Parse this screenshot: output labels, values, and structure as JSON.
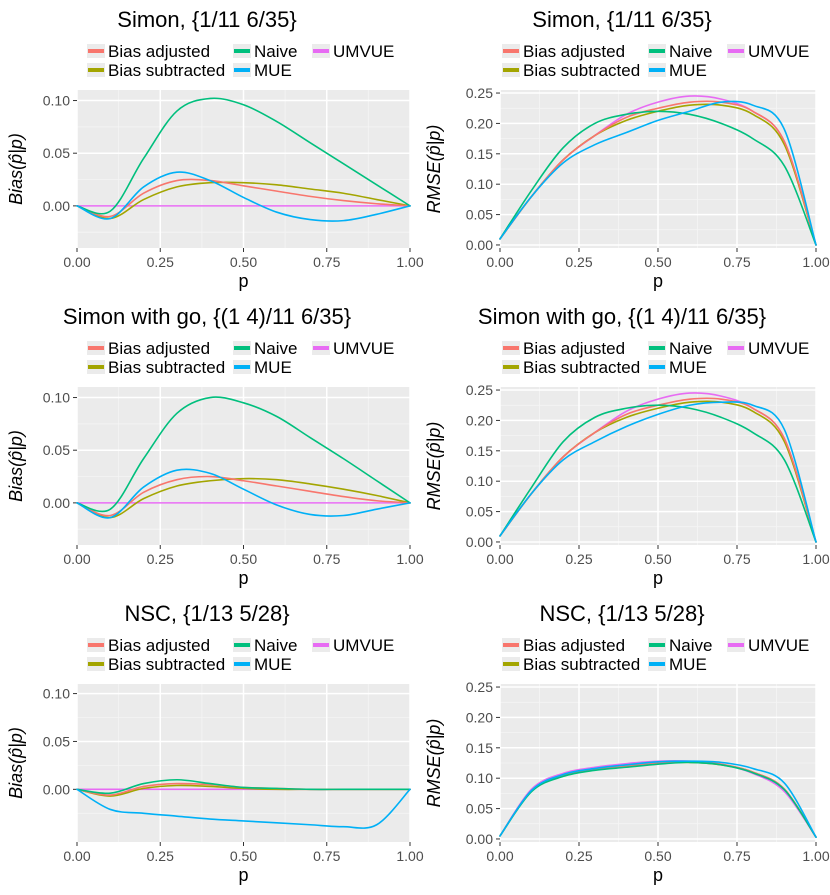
{
  "legend": {
    "entries": [
      {
        "label": "Bias adjusted",
        "color": "#F8766D"
      },
      {
        "label": "Naive",
        "color": "#00BF7D"
      },
      {
        "label": "UMVUE",
        "color": "#E76BF3"
      },
      {
        "label": "Bias subtracted",
        "color": "#A3A500"
      },
      {
        "label": "MUE",
        "color": "#00B0F6"
      }
    ]
  },
  "chart_data": [
    {
      "type": "line",
      "title": "Simon,  {1/11 6/35}",
      "xlabel": "p",
      "ylabel": "Bias(p̂|p)",
      "xlim": [
        0,
        1
      ],
      "ylim": [
        -0.04,
        0.11
      ],
      "x_ticks": [
        "0.00",
        "0.25",
        "0.50",
        "0.75",
        "1.00"
      ],
      "y_ticks": [
        "0.00",
        "0.05",
        "0.10"
      ],
      "y_tick_values": [
        0,
        0.05,
        0.1
      ],
      "x": [
        0,
        0.1,
        0.2,
        0.3,
        0.4,
        0.5,
        0.6,
        0.7,
        0.8,
        0.9,
        1.0
      ],
      "series": [
        {
          "name": "Bias adjusted",
          "values": [
            0,
            -0.01,
            0.012,
            0.024,
            0.024,
            0.019,
            0.014,
            0.009,
            0.005,
            0.002,
            0
          ]
        },
        {
          "name": "Naive",
          "values": [
            0,
            -0.005,
            0.045,
            0.09,
            0.102,
            0.096,
            0.08,
            0.06,
            0.04,
            0.02,
            0
          ]
        },
        {
          "name": "UMVUE",
          "values": [
            0,
            0,
            0,
            0,
            0,
            0,
            0,
            0,
            0,
            0,
            0
          ]
        },
        {
          "name": "Bias subtracted",
          "values": [
            0,
            -0.012,
            0.006,
            0.018,
            0.022,
            0.022,
            0.02,
            0.016,
            0.012,
            0.006,
            0
          ]
        },
        {
          "name": "MUE",
          "values": [
            0,
            -0.012,
            0.018,
            0.032,
            0.024,
            0.008,
            -0.006,
            -0.013,
            -0.014,
            -0.008,
            0
          ]
        }
      ]
    },
    {
      "type": "line",
      "title": "Simon,  {1/11 6/35}",
      "xlabel": "p",
      "ylabel": "RMSE(p̂|p)",
      "xlim": [
        0,
        1
      ],
      "ylim": [
        -0.005,
        0.255
      ],
      "x_ticks": [
        "0.00",
        "0.25",
        "0.50",
        "0.75",
        "1.00"
      ],
      "y_ticks": [
        "0.00",
        "0.05",
        "0.10",
        "0.15",
        "0.20",
        "0.25"
      ],
      "y_tick_values": [
        0,
        0.05,
        0.1,
        0.15,
        0.2,
        0.25
      ],
      "x": [
        0,
        0.1,
        0.2,
        0.3,
        0.4,
        0.5,
        0.6,
        0.7,
        0.8,
        0.9,
        1.0
      ],
      "series": [
        {
          "name": "Bias adjusted",
          "values": [
            0.01,
            0.08,
            0.14,
            0.18,
            0.21,
            0.225,
            0.235,
            0.235,
            0.22,
            0.17,
            0
          ]
        },
        {
          "name": "Naive",
          "values": [
            0.01,
            0.09,
            0.16,
            0.2,
            0.215,
            0.22,
            0.215,
            0.2,
            0.175,
            0.13,
            0
          ]
        },
        {
          "name": "UMVUE",
          "values": [
            0.01,
            0.08,
            0.14,
            0.18,
            0.215,
            0.235,
            0.245,
            0.24,
            0.22,
            0.17,
            0
          ]
        },
        {
          "name": "Bias subtracted",
          "values": [
            0.01,
            0.08,
            0.14,
            0.18,
            0.205,
            0.22,
            0.23,
            0.23,
            0.215,
            0.165,
            0
          ]
        },
        {
          "name": "MUE",
          "values": [
            0.01,
            0.08,
            0.135,
            0.165,
            0.185,
            0.205,
            0.22,
            0.235,
            0.23,
            0.19,
            0
          ]
        }
      ]
    },
    {
      "type": "line",
      "title": "Simon with go,  {(1 4)/11 6/35}",
      "xlabel": "p",
      "ylabel": "Bias(p̂|p)",
      "xlim": [
        0,
        1
      ],
      "ylim": [
        -0.04,
        0.11
      ],
      "x_ticks": [
        "0.00",
        "0.25",
        "0.50",
        "0.75",
        "1.00"
      ],
      "y_ticks": [
        "0.00",
        "0.05",
        "0.10"
      ],
      "y_tick_values": [
        0,
        0.05,
        0.1
      ],
      "x": [
        0,
        0.1,
        0.2,
        0.3,
        0.4,
        0.5,
        0.6,
        0.7,
        0.8,
        0.9,
        1.0
      ],
      "series": [
        {
          "name": "Bias adjusted",
          "values": [
            0,
            -0.012,
            0.01,
            0.022,
            0.025,
            0.021,
            0.016,
            0.011,
            0.006,
            0.002,
            0
          ]
        },
        {
          "name": "Naive",
          "values": [
            0,
            -0.006,
            0.042,
            0.085,
            0.1,
            0.095,
            0.082,
            0.062,
            0.042,
            0.021,
            0
          ]
        },
        {
          "name": "UMVUE",
          "values": [
            0,
            0,
            0,
            0,
            0,
            0,
            0,
            0,
            0,
            0,
            0
          ]
        },
        {
          "name": "Bias subtracted",
          "values": [
            0,
            -0.014,
            0.004,
            0.016,
            0.021,
            0.023,
            0.022,
            0.018,
            0.013,
            0.007,
            0
          ]
        },
        {
          "name": "MUE",
          "values": [
            0,
            -0.014,
            0.015,
            0.031,
            0.028,
            0.013,
            -0.002,
            -0.011,
            -0.012,
            -0.006,
            0
          ]
        }
      ]
    },
    {
      "type": "line",
      "title": "Simon with go,  {(1 4)/11 6/35}",
      "xlabel": "p",
      "ylabel": "RMSE(p̂|p)",
      "xlim": [
        0,
        1
      ],
      "ylim": [
        -0.005,
        0.255
      ],
      "x_ticks": [
        "0.00",
        "0.25",
        "0.50",
        "0.75",
        "1.00"
      ],
      "y_ticks": [
        "0.00",
        "0.05",
        "0.10",
        "0.15",
        "0.20",
        "0.25"
      ],
      "y_tick_values": [
        0,
        0.05,
        0.1,
        0.15,
        0.2,
        0.25
      ],
      "x": [
        0,
        0.1,
        0.2,
        0.3,
        0.4,
        0.5,
        0.6,
        0.7,
        0.8,
        0.9,
        1.0
      ],
      "series": [
        {
          "name": "Bias adjusted",
          "values": [
            0.01,
            0.08,
            0.14,
            0.18,
            0.21,
            0.225,
            0.235,
            0.235,
            0.22,
            0.17,
            0
          ]
        },
        {
          "name": "Naive",
          "values": [
            0.01,
            0.09,
            0.165,
            0.205,
            0.22,
            0.225,
            0.22,
            0.205,
            0.18,
            0.135,
            0
          ]
        },
        {
          "name": "UMVUE",
          "values": [
            0.01,
            0.08,
            0.14,
            0.18,
            0.215,
            0.235,
            0.245,
            0.24,
            0.22,
            0.17,
            0
          ]
        },
        {
          "name": "Bias subtracted",
          "values": [
            0.01,
            0.08,
            0.14,
            0.18,
            0.205,
            0.22,
            0.23,
            0.23,
            0.215,
            0.165,
            0
          ]
        },
        {
          "name": "MUE",
          "values": [
            0.01,
            0.08,
            0.135,
            0.165,
            0.19,
            0.21,
            0.225,
            0.23,
            0.225,
            0.185,
            0
          ]
        }
      ]
    },
    {
      "type": "line",
      "title": "NSC,  {1/13 5/28}",
      "xlabel": "p",
      "ylabel": "Bias(p̂|p)",
      "xlim": [
        0,
        1
      ],
      "ylim": [
        -0.055,
        0.11
      ],
      "x_ticks": [
        "0.00",
        "0.25",
        "0.50",
        "0.75",
        "1.00"
      ],
      "y_ticks": [
        "0.00",
        "0.05",
        "0.10"
      ],
      "y_tick_values": [
        0,
        0.05,
        0.1
      ],
      "x": [
        0,
        0.1,
        0.2,
        0.3,
        0.4,
        0.5,
        0.6,
        0.7,
        0.8,
        0.9,
        1.0
      ],
      "series": [
        {
          "name": "Bias adjusted",
          "values": [
            0,
            -0.006,
            0.003,
            0.006,
            0.005,
            0.002,
            0.001,
            0,
            0,
            0,
            0
          ]
        },
        {
          "name": "Naive",
          "values": [
            0,
            -0.004,
            0.006,
            0.01,
            0.006,
            0.002,
            0.001,
            0,
            0,
            0,
            0
          ]
        },
        {
          "name": "UMVUE",
          "values": [
            0,
            0,
            0,
            0,
            0,
            0,
            0,
            0,
            0,
            0,
            0
          ]
        },
        {
          "name": "Bias subtracted",
          "values": [
            0,
            -0.007,
            0.001,
            0.004,
            0.003,
            0.001,
            0,
            0,
            0,
            0,
            0
          ]
        },
        {
          "name": "MUE",
          "values": [
            0,
            -0.021,
            -0.025,
            -0.028,
            -0.031,
            -0.033,
            -0.035,
            -0.037,
            -0.039,
            -0.037,
            0
          ]
        }
      ]
    },
    {
      "type": "line",
      "title": "NSC,  {1/13 5/28}",
      "xlabel": "p",
      "ylabel": "RMSE(p̂|p)",
      "xlim": [
        0,
        1
      ],
      "ylim": [
        -0.005,
        0.255
      ],
      "x_ticks": [
        "0.00",
        "0.25",
        "0.50",
        "0.75",
        "1.00"
      ],
      "y_ticks": [
        "0.00",
        "0.05",
        "0.10",
        "0.15",
        "0.20",
        "0.25"
      ],
      "y_tick_values": [
        0,
        0.05,
        0.1,
        0.15,
        0.2,
        0.25
      ],
      "x": [
        0,
        0.1,
        0.2,
        0.3,
        0.4,
        0.5,
        0.6,
        0.7,
        0.8,
        0.9,
        1.0
      ],
      "series": [
        {
          "name": "Bias adjusted",
          "values": [
            0.005,
            0.08,
            0.105,
            0.115,
            0.12,
            0.125,
            0.127,
            0.123,
            0.11,
            0.082,
            0.003
          ]
        },
        {
          "name": "Naive",
          "values": [
            0.005,
            0.078,
            0.103,
            0.113,
            0.118,
            0.123,
            0.126,
            0.122,
            0.109,
            0.081,
            0.003
          ]
        },
        {
          "name": "UMVUE",
          "values": [
            0.005,
            0.082,
            0.108,
            0.118,
            0.124,
            0.128,
            0.128,
            0.123,
            0.108,
            0.078,
            0.003
          ]
        },
        {
          "name": "Bias subtracted",
          "values": [
            0.005,
            0.079,
            0.104,
            0.114,
            0.119,
            0.124,
            0.126,
            0.122,
            0.11,
            0.082,
            0.003
          ]
        },
        {
          "name": "MUE",
          "values": [
            0.005,
            0.08,
            0.106,
            0.116,
            0.122,
            0.127,
            0.128,
            0.126,
            0.116,
            0.092,
            0.003
          ]
        }
      ]
    }
  ]
}
